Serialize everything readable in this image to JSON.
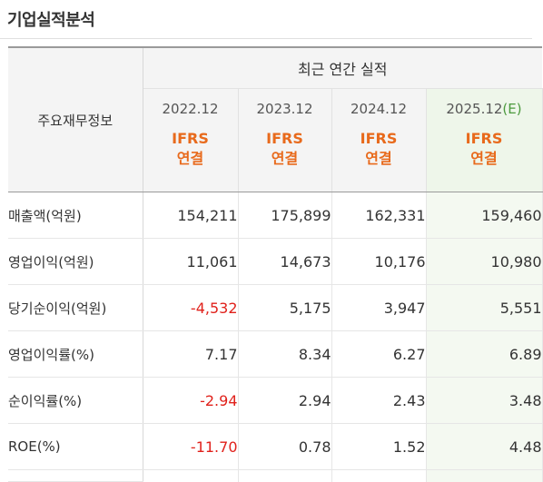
{
  "section_title": "기업실적분석",
  "header": {
    "label_col": "주요재무정보",
    "group_label": "최근 연간 실적",
    "columns": [
      {
        "year": "2022.12",
        "est": "",
        "ifrs": "IFRS",
        "basis": "연결"
      },
      {
        "year": "2023.12",
        "est": "",
        "ifrs": "IFRS",
        "basis": "연결"
      },
      {
        "year": "2024.12",
        "est": "",
        "ifrs": "IFRS",
        "basis": "연결"
      },
      {
        "year": "2025.12",
        "est": "(E)",
        "ifrs": "IFRS",
        "basis": "연결"
      }
    ]
  },
  "rows": [
    {
      "label": "매출액(억원)",
      "values": [
        "154,211",
        "175,899",
        "162,331",
        "159,460"
      ]
    },
    {
      "label": "영업이익(억원)",
      "values": [
        "11,061",
        "14,673",
        "10,176",
        "10,980"
      ]
    },
    {
      "label": "당기순이익(억원)",
      "values": [
        "-4,532",
        "5,175",
        "3,947",
        "5,551"
      ]
    },
    {
      "label": "영업이익률(%)",
      "values": [
        "7.17",
        "8.34",
        "6.27",
        "6.89"
      ]
    },
    {
      "label": "순이익률(%)",
      "values": [
        "-2.94",
        "2.94",
        "2.43",
        "3.48"
      ]
    },
    {
      "label": "ROE(%)",
      "values": [
        "-11.70",
        "0.78",
        "1.52",
        "4.48"
      ]
    }
  ],
  "colors": {
    "negative": "#e0211b",
    "ifrs": "#e86a1c",
    "estimate_bg": "#eef6ea",
    "estimate_mark": "#4c9a3e"
  }
}
